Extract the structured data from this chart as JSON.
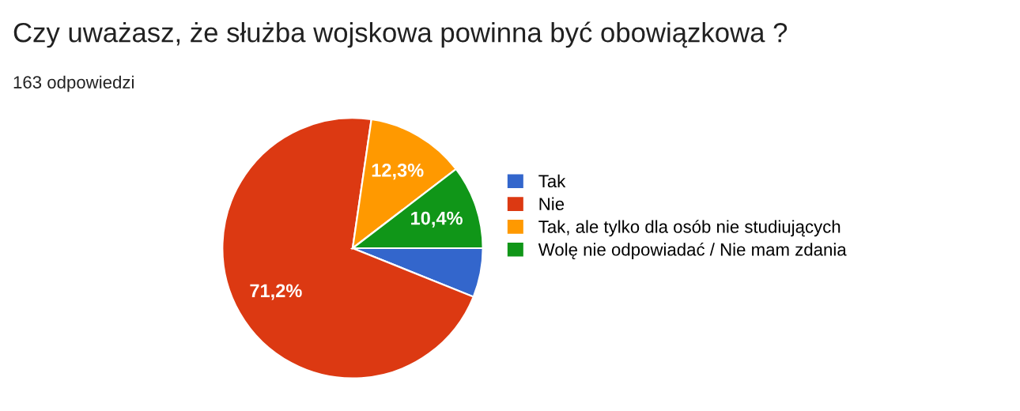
{
  "chart_data": {
    "type": "pie",
    "title": "Czy uważasz, że służba wojskowa powinna być obowiązkowa ?",
    "subtitle": "163 odpowiedzi",
    "categories": [
      "Tak",
      "Nie",
      "Tak, ale tylko dla osób nie studiujących",
      "Wolę nie odpowiadać / Nie mam zdania"
    ],
    "values": [
      6.1,
      71.2,
      12.3,
      10.4
    ],
    "colors": [
      "#3366cc",
      "#dc3912",
      "#ff9900",
      "#109618"
    ],
    "value_labels": [
      null,
      "71,2%",
      "12,3%",
      "10,4%"
    ],
    "legend": "right"
  }
}
